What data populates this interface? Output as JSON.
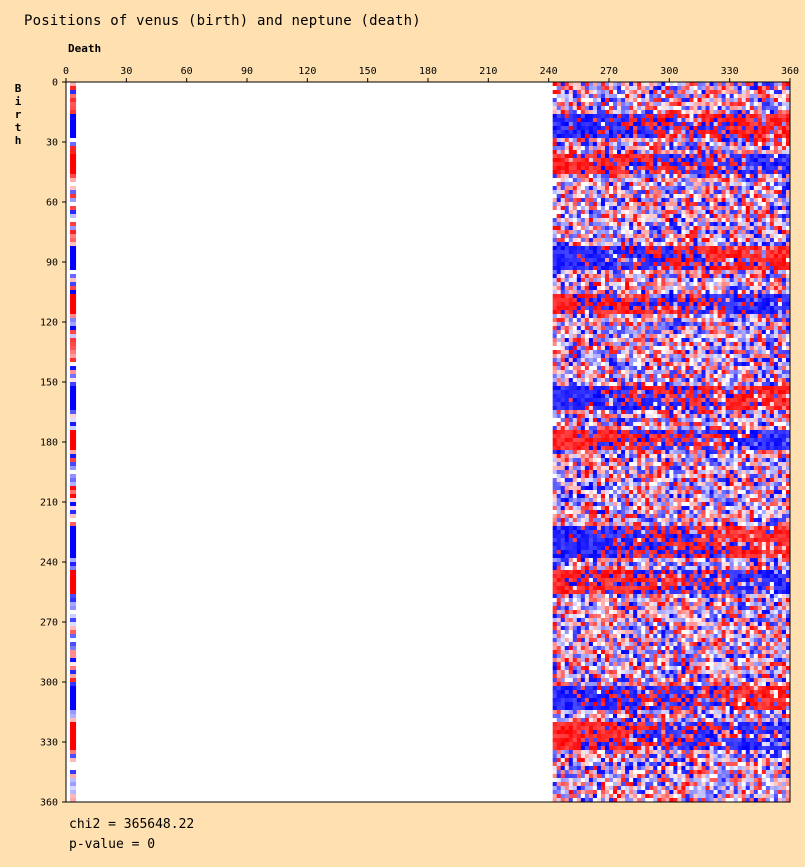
{
  "chart_data": {
    "type": "heatmap",
    "title": "Positions of venus (birth) and neptune (death)",
    "xlabel": "Death",
    "ylabel": "Birth",
    "xlim": [
      0,
      360
    ],
    "ylim": [
      0,
      360
    ],
    "x_ticks": [
      "0",
      "30",
      "60",
      "90",
      "120",
      "150",
      "180",
      "210",
      "240",
      "270",
      "300",
      "330",
      "360"
    ],
    "y_ticks": [
      "0",
      "30",
      "60",
      "90",
      "120",
      "150",
      "180",
      "210",
      "240",
      "270",
      "300",
      "330",
      "360"
    ],
    "populated_x_ranges": [
      [
        2,
        5
      ],
      [
        242,
        360
      ]
    ],
    "empty_x_range": [
      5,
      242
    ],
    "band_pattern": {
      "high_color": "#0000FF",
      "low_color": "#FF0000",
      "neutral_color": "#FFFFFF",
      "bands": [
        {
          "y_start": 16,
          "y_end": 28,
          "left": "blue",
          "right": "red"
        },
        {
          "y_start": 36,
          "y_end": 46,
          "left": "red",
          "right": "blue"
        },
        {
          "y_start": 82,
          "y_end": 94,
          "left": "blue",
          "right": "red"
        },
        {
          "y_start": 106,
          "y_end": 116,
          "left": "red",
          "right": "blue"
        },
        {
          "y_start": 152,
          "y_end": 164,
          "left": "blue",
          "right": "red"
        },
        {
          "y_start": 174,
          "y_end": 184,
          "left": "red",
          "right": "blue"
        },
        {
          "y_start": 222,
          "y_end": 238,
          "left": "blue",
          "right": "red"
        },
        {
          "y_start": 244,
          "y_end": 256,
          "left": "red",
          "right": "blue"
        },
        {
          "y_start": 302,
          "y_end": 314,
          "left": "blue",
          "right": "red"
        },
        {
          "y_start": 320,
          "y_end": 334,
          "left": "red",
          "right": "blue"
        }
      ]
    }
  },
  "stats": {
    "chi2": "chi2 = 365648.22",
    "pvalue": "p-value = 0"
  }
}
